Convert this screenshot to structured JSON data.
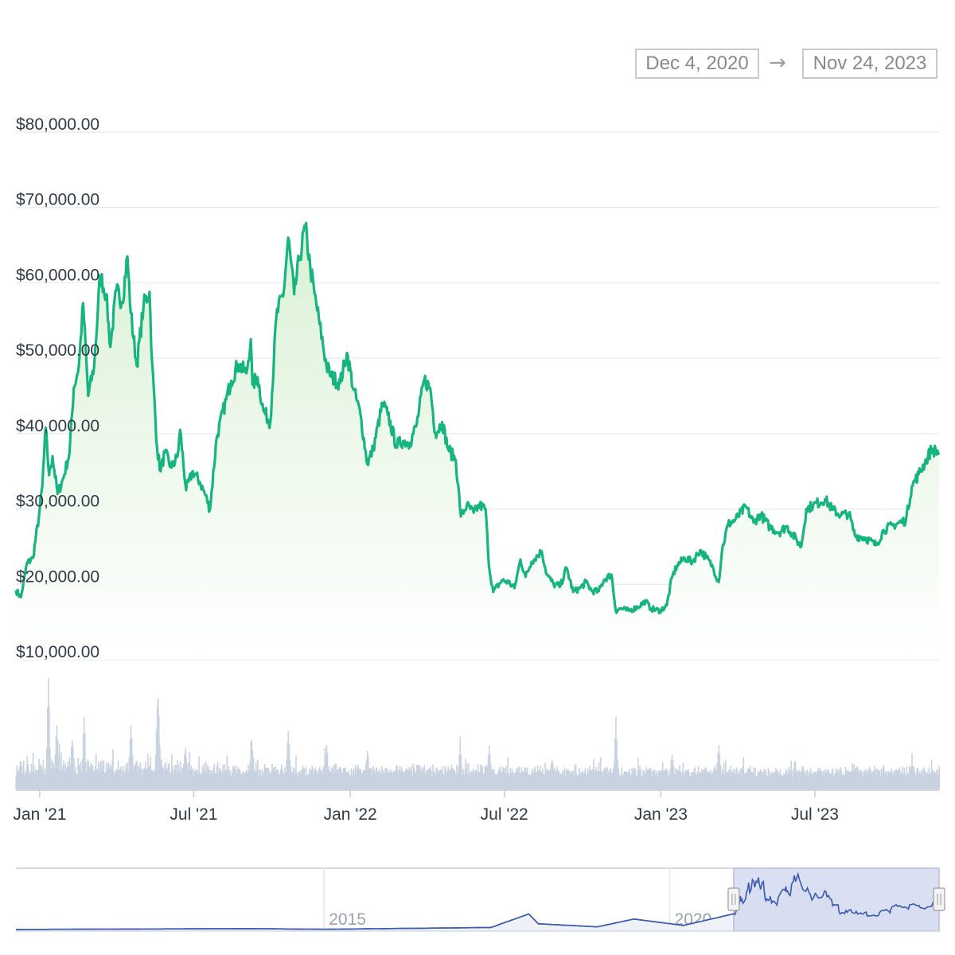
{
  "range_selector": {
    "from": "Dec 4, 2020",
    "arrow": "→",
    "to": "Nov 24, 2023"
  },
  "colors": {
    "price_line": "#16b57f",
    "area_top": "#d8f0d2",
    "grid": "#e9eef0",
    "volume": "#c9d2e0",
    "navigator_line": "#3b5bb0",
    "navigator_mask": "#d3dbee"
  },
  "chart_data": {
    "type": "line",
    "title": "",
    "xlabel": "",
    "ylabel": "",
    "x_range": [
      "2020-12-04",
      "2023-11-24"
    ],
    "ylim": [
      10000,
      80000
    ],
    "y_ticks": [
      "$10,000.00",
      "$20,000.00",
      "$30,000.00",
      "$40,000.00",
      "$50,000.00",
      "$60,000.00",
      "$70,000.00",
      "$80,000.00"
    ],
    "y_tick_values": [
      10000,
      20000,
      30000,
      40000,
      50000,
      60000,
      70000,
      80000
    ],
    "x_ticks": [
      {
        "label": "Jan '21",
        "date": "2021-01-01"
      },
      {
        "label": "Jul '21",
        "date": "2021-07-01"
      },
      {
        "label": "Jan '22",
        "date": "2022-01-01"
      },
      {
        "label": "Jul '22",
        "date": "2022-07-01"
      },
      {
        "label": "Jan '23",
        "date": "2023-01-01"
      },
      {
        "label": "Jul '23",
        "date": "2023-07-01"
      }
    ],
    "grid": true,
    "series": [
      {
        "values": [
          [
            "2020-12-04",
            19200
          ],
          [
            "2020-12-10",
            18300
          ],
          [
            "2020-12-17",
            22800
          ],
          [
            "2020-12-24",
            23500
          ],
          [
            "2020-12-31",
            29000
          ],
          [
            "2021-01-04",
            33000
          ],
          [
            "2021-01-08",
            40800
          ],
          [
            "2021-01-12",
            34500
          ],
          [
            "2021-01-16",
            37000
          ],
          [
            "2021-01-22",
            32000
          ],
          [
            "2021-01-29",
            34200
          ],
          [
            "2021-02-05",
            37500
          ],
          [
            "2021-02-10",
            46000
          ],
          [
            "2021-02-16",
            49000
          ],
          [
            "2021-02-21",
            57300
          ],
          [
            "2021-02-27",
            45000
          ],
          [
            "2021-03-06",
            49000
          ],
          [
            "2021-03-13",
            61000
          ],
          [
            "2021-03-20",
            58500
          ],
          [
            "2021-03-25",
            51500
          ],
          [
            "2021-04-01",
            59000
          ],
          [
            "2021-04-08",
            57500
          ],
          [
            "2021-04-14",
            63500
          ],
          [
            "2021-04-18",
            56000
          ],
          [
            "2021-04-25",
            49000
          ],
          [
            "2021-05-03",
            57000
          ],
          [
            "2021-05-10",
            58800
          ],
          [
            "2021-05-13",
            49500
          ],
          [
            "2021-05-19",
            38000
          ],
          [
            "2021-05-23",
            35000
          ],
          [
            "2021-05-28",
            37500
          ],
          [
            "2021-06-05",
            35500
          ],
          [
            "2021-06-12",
            37000
          ],
          [
            "2021-06-15",
            40500
          ],
          [
            "2021-06-22",
            32500
          ],
          [
            "2021-06-30",
            35000
          ],
          [
            "2021-07-08",
            33600
          ],
          [
            "2021-07-15",
            31800
          ],
          [
            "2021-07-20",
            29900
          ],
          [
            "2021-07-28",
            39500
          ],
          [
            "2021-08-08",
            44500
          ],
          [
            "2021-08-14",
            47000
          ],
          [
            "2021-08-22",
            49200
          ],
          [
            "2021-09-01",
            48000
          ],
          [
            "2021-09-06",
            52500
          ],
          [
            "2021-09-08",
            46500
          ],
          [
            "2021-09-14",
            47500
          ],
          [
            "2021-09-21",
            43000
          ],
          [
            "2021-09-29",
            41500
          ],
          [
            "2021-10-06",
            55500
          ],
          [
            "2021-10-15",
            59000
          ],
          [
            "2021-10-20",
            66000
          ],
          [
            "2021-10-27",
            58500
          ],
          [
            "2021-11-02",
            63000
          ],
          [
            "2021-11-09",
            67500
          ],
          [
            "2021-11-15",
            62000
          ],
          [
            "2021-11-20",
            58500
          ],
          [
            "2021-11-26",
            54500
          ],
          [
            "2021-12-04",
            49000
          ],
          [
            "2021-12-10",
            47500
          ],
          [
            "2021-12-20",
            46700
          ],
          [
            "2021-12-28",
            50700
          ],
          [
            "2022-01-05",
            45800
          ],
          [
            "2022-01-13",
            42500
          ],
          [
            "2022-01-21",
            36000
          ],
          [
            "2022-01-28",
            38000
          ],
          [
            "2022-02-08",
            44000
          ],
          [
            "2022-02-14",
            42500
          ],
          [
            "2022-02-24",
            38500
          ],
          [
            "2022-03-04",
            39000
          ],
          [
            "2022-03-12",
            38800
          ],
          [
            "2022-03-20",
            41200
          ],
          [
            "2022-03-29",
            47200
          ],
          [
            "2022-04-05",
            46000
          ],
          [
            "2022-04-11",
            40000
          ],
          [
            "2022-04-19",
            41500
          ],
          [
            "2022-04-26",
            38000
          ],
          [
            "2022-05-05",
            36500
          ],
          [
            "2022-05-11",
            29000
          ],
          [
            "2022-05-18",
            30500
          ],
          [
            "2022-05-26",
            29500
          ],
          [
            "2022-06-02",
            30500
          ],
          [
            "2022-06-09",
            30000
          ],
          [
            "2022-06-13",
            22500
          ],
          [
            "2022-06-18",
            19000
          ],
          [
            "2022-06-28",
            20500
          ],
          [
            "2022-07-06",
            20300
          ],
          [
            "2022-07-13",
            19500
          ],
          [
            "2022-07-20",
            23300
          ],
          [
            "2022-07-26",
            21000
          ],
          [
            "2022-08-02",
            23000
          ],
          [
            "2022-08-14",
            24400
          ],
          [
            "2022-08-20",
            21300
          ],
          [
            "2022-08-28",
            20000
          ],
          [
            "2022-09-05",
            19800
          ],
          [
            "2022-09-12",
            22200
          ],
          [
            "2022-09-20",
            19000
          ],
          [
            "2022-09-28",
            19500
          ],
          [
            "2022-10-05",
            20300
          ],
          [
            "2022-10-12",
            19100
          ],
          [
            "2022-10-20",
            19100
          ],
          [
            "2022-10-26",
            20600
          ],
          [
            "2022-11-04",
            21300
          ],
          [
            "2022-11-09",
            16500
          ],
          [
            "2022-11-15",
            16800
          ],
          [
            "2022-11-24",
            16500
          ],
          [
            "2022-12-05",
            17000
          ],
          [
            "2022-12-14",
            17800
          ],
          [
            "2022-12-20",
            16800
          ],
          [
            "2022-12-31",
            16500
          ],
          [
            "2023-01-08",
            17200
          ],
          [
            "2023-01-14",
            20900
          ],
          [
            "2023-01-20",
            22500
          ],
          [
            "2023-01-29",
            23500
          ],
          [
            "2023-02-07",
            23000
          ],
          [
            "2023-02-16",
            24500
          ],
          [
            "2023-02-24",
            23500
          ],
          [
            "2023-03-03",
            22300
          ],
          [
            "2023-03-10",
            20300
          ],
          [
            "2023-03-14",
            24600
          ],
          [
            "2023-03-21",
            28000
          ],
          [
            "2023-03-29",
            28500
          ],
          [
            "2023-04-11",
            30300
          ],
          [
            "2023-04-20",
            28200
          ],
          [
            "2023-04-28",
            29300
          ],
          [
            "2023-05-09",
            27600
          ],
          [
            "2023-05-20",
            26900
          ],
          [
            "2023-05-29",
            27700
          ],
          [
            "2023-06-10",
            25800
          ],
          [
            "2023-06-15",
            25000
          ],
          [
            "2023-06-21",
            30000
          ],
          [
            "2023-06-29",
            30500
          ],
          [
            "2023-07-13",
            31300
          ],
          [
            "2023-07-22",
            29900
          ],
          [
            "2023-08-01",
            29200
          ],
          [
            "2023-08-10",
            29400
          ],
          [
            "2023-08-17",
            26500
          ],
          [
            "2023-08-29",
            26200
          ],
          [
            "2023-09-11",
            25200
          ],
          [
            "2023-09-20",
            27200
          ],
          [
            "2023-10-02",
            27900
          ],
          [
            "2023-10-16",
            28500
          ],
          [
            "2023-10-23",
            33000
          ],
          [
            "2023-10-31",
            34600
          ],
          [
            "2023-11-09",
            36500
          ],
          [
            "2023-11-15",
            37900
          ],
          [
            "2023-11-24",
            37500
          ]
        ]
      }
    ],
    "volume": {
      "x_range": [
        "2020-12-04",
        "2023-11-24"
      ],
      "peaks": [
        [
          "2021-01-11",
          0.95
        ],
        [
          "2021-01-21",
          0.55
        ],
        [
          "2021-02-08",
          0.42
        ],
        [
          "2021-02-22",
          0.62
        ],
        [
          "2021-04-18",
          0.55
        ],
        [
          "2021-05-19",
          0.6
        ],
        [
          "2021-05-20",
          0.78
        ],
        [
          "2021-06-21",
          0.35
        ],
        [
          "2021-09-07",
          0.42
        ],
        [
          "2021-10-20",
          0.5
        ],
        [
          "2021-12-04",
          0.38
        ],
        [
          "2022-01-21",
          0.33
        ],
        [
          "2022-05-10",
          0.37
        ],
        [
          "2022-06-13",
          0.35
        ],
        [
          "2022-08-26",
          0.25
        ],
        [
          "2022-11-09",
          0.55
        ],
        [
          "2023-01-14",
          0.3
        ],
        [
          "2023-03-10",
          0.38
        ],
        [
          "2023-08-17",
          0.18
        ],
        [
          "2023-10-23",
          0.22
        ]
      ]
    },
    "navigator": {
      "x_ticks": [
        {
          "label": "2015",
          "year": 2015
        },
        {
          "label": "2020",
          "year": 2020
        }
      ],
      "selection": [
        "2020-12-04",
        "2023-11-24"
      ]
    }
  }
}
